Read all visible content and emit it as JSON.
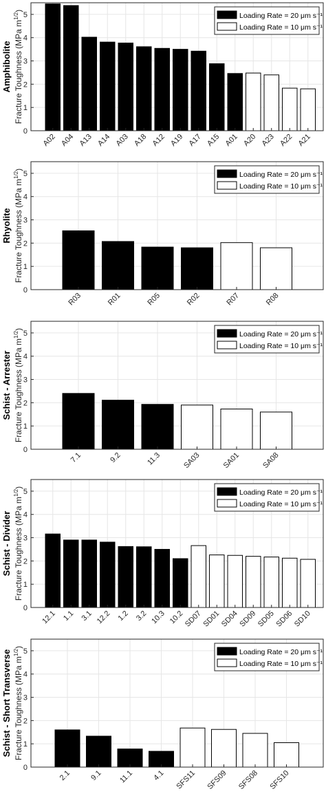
{
  "legend": {
    "loading_20": "Loading Rate = 20 μm s⁻¹",
    "loading_10": "Loading Rate = 10 μm s⁻¹"
  },
  "colors": {
    "rate_20_fill": "#000000",
    "rate_10_fill": "#ffffff",
    "bar_stroke": "#000000",
    "grid": "#e6e6e6",
    "axis": "#262626"
  },
  "chart_data": [
    {
      "type": "bar",
      "group_label": "Amphibolite",
      "ylabel": "Fracture Toughness (MPa m^1/2)",
      "ylim": [
        0,
        5.5
      ],
      "yticks": [
        "0",
        "1",
        "2",
        "3",
        "4",
        "5"
      ],
      "grid": true,
      "legend_position": "top-right",
      "categories": [
        "A02",
        "A04",
        "A13",
        "A14",
        "A03",
        "A18",
        "A12",
        "A19",
        "A17",
        "A15",
        "A01",
        "A20",
        "A23",
        "A22",
        "A21"
      ],
      "values": [
        5.45,
        5.38,
        4.02,
        3.81,
        3.77,
        3.61,
        3.54,
        3.5,
        3.42,
        2.88,
        2.46,
        2.48,
        2.4,
        1.83,
        1.8
      ],
      "loading_rate": [
        20,
        20,
        20,
        20,
        20,
        20,
        20,
        20,
        20,
        20,
        20,
        10,
        10,
        10,
        10
      ]
    },
    {
      "type": "bar",
      "group_label": "Rhyolite",
      "ylabel": "Fracture Toughness (MPa m^1/2)",
      "ylim": [
        0,
        5.5
      ],
      "yticks": [
        "0",
        "1",
        "2",
        "3",
        "4",
        "5"
      ],
      "grid": true,
      "legend_position": "top-right",
      "categories": [
        "R03",
        "R01",
        "R05",
        "R02",
        "R07",
        "R08"
      ],
      "values": [
        2.53,
        2.07,
        1.83,
        1.8,
        2.02,
        1.8
      ],
      "loading_rate": [
        20,
        20,
        20,
        20,
        10,
        10
      ]
    },
    {
      "type": "bar",
      "group_label": "Schist - Arrester",
      "ylabel": "Fracture Toughness (MPa m^1/2)",
      "ylim": [
        0,
        5.5
      ],
      "yticks": [
        "0",
        "1",
        "2",
        "3",
        "4",
        "5"
      ],
      "grid": true,
      "legend_position": "top-right",
      "categories": [
        "7.1",
        "9.2",
        "11.3",
        "SA03",
        "SA01",
        "SA08"
      ],
      "values": [
        2.4,
        2.11,
        1.93,
        1.9,
        1.73,
        1.6
      ],
      "loading_rate": [
        20,
        20,
        20,
        10,
        10,
        10
      ]
    },
    {
      "type": "bar",
      "group_label": "Schist - Divider",
      "ylabel": "Fracture Toughness (MPa m^1/2)",
      "ylim": [
        0,
        5.5
      ],
      "yticks": [
        "0",
        "1",
        "2",
        "3",
        "4",
        "5"
      ],
      "grid": true,
      "legend_position": "top-right",
      "categories": [
        "12.1",
        "1.1",
        "3.1",
        "12.2",
        "1.2",
        "3.2",
        "10.3",
        "10.2",
        "SD07",
        "SD01",
        "SD04",
        "SD09",
        "SD05",
        "SD06",
        "SD10"
      ],
      "values": [
        3.16,
        2.9,
        2.9,
        2.81,
        2.62,
        2.61,
        2.5,
        2.1,
        2.66,
        2.26,
        2.24,
        2.2,
        2.17,
        2.12,
        2.07
      ],
      "loading_rate": [
        20,
        20,
        20,
        20,
        20,
        20,
        20,
        20,
        10,
        10,
        10,
        10,
        10,
        10,
        10
      ]
    },
    {
      "type": "bar",
      "group_label": "Schist - Short Transverse",
      "ylabel": "Fracture Toughness (MPa m^1/2)",
      "ylim": [
        0,
        5.5
      ],
      "yticks": [
        "0",
        "1",
        "2",
        "3",
        "4",
        "5"
      ],
      "grid": true,
      "legend_position": "top-right",
      "categories": [
        "2.1",
        "9.1",
        "11.1",
        "4.1",
        "SFS11",
        "SFS09",
        "SFS08",
        "SFS10"
      ],
      "values": [
        1.6,
        1.33,
        0.78,
        0.68,
        1.68,
        1.62,
        1.45,
        1.05
      ],
      "loading_rate": [
        20,
        20,
        20,
        20,
        10,
        10,
        10,
        10
      ]
    }
  ]
}
